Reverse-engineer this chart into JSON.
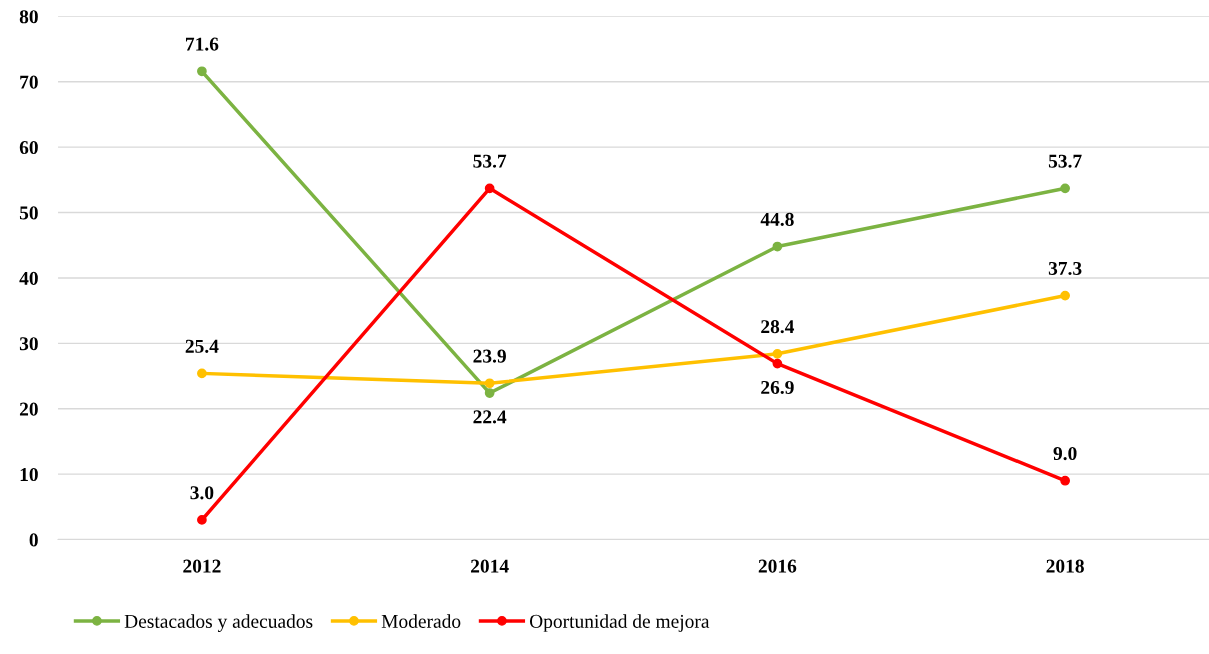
{
  "chart_data": {
    "type": "line",
    "categories": [
      "2012",
      "2014",
      "2016",
      "2018"
    ],
    "series": [
      {
        "name": "Destacados y adecuados",
        "color": "#7cb342",
        "values": [
          71.6,
          22.4,
          44.8,
          53.7
        ],
        "value_labels": [
          "71.6",
          "22.4",
          "44.8",
          "53.7"
        ]
      },
      {
        "name": "Moderado",
        "color": "#ffc000",
        "values": [
          25.4,
          23.9,
          28.4,
          37.3
        ],
        "value_labels": [
          "25.4",
          "23.9",
          "28.4",
          "37.3"
        ]
      },
      {
        "name": "Oportunidad de mejora",
        "color": "#ff0000",
        "values": [
          3,
          53.7,
          26.9,
          9
        ],
        "value_labels": [
          "3.0",
          "53.7",
          "26.9",
          "9.0"
        ]
      }
    ],
    "ylim": [
      0,
      80
    ],
    "yticks": [
      0,
      10,
      20,
      30,
      40,
      50,
      60,
      70,
      80
    ],
    "grid": "y",
    "legend": "bottom left",
    "marker": "circle",
    "line_style": "solid"
  }
}
